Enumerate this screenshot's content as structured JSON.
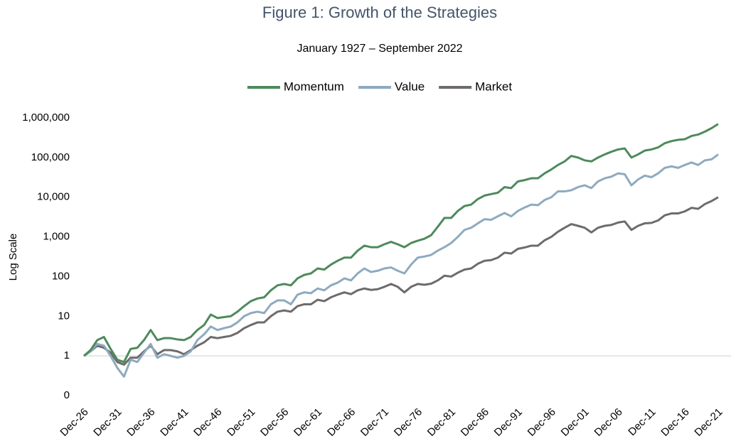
{
  "chart_data": {
    "type": "line",
    "title": "Figure 1: Growth of the Strategies",
    "subtitle": "January 1927 – September 2022",
    "y_label": "Log Scale",
    "log_scale": true,
    "hline": 1,
    "hline_color": "#d9d9d9",
    "legend_position": "top",
    "ylim": [
      0.1,
      1000000
    ],
    "yticks": [
      {
        "value": 0.1,
        "label": "0"
      },
      1,
      10,
      100,
      {
        "value": 1000,
        "label": "1,000"
      },
      {
        "value": 10000,
        "label": "10,000"
      },
      {
        "value": 100000,
        "label": "100,000"
      },
      {
        "value": 1000000,
        "label": "1,000,000"
      }
    ],
    "categories": [
      "Dec-26",
      null,
      null,
      null,
      null,
      "Dec-31",
      null,
      null,
      null,
      null,
      "Dec-36",
      null,
      null,
      null,
      null,
      "Dec-41",
      null,
      null,
      null,
      null,
      "Dec-46",
      null,
      null,
      null,
      null,
      "Dec-51",
      null,
      null,
      null,
      null,
      "Dec-56",
      null,
      null,
      null,
      null,
      "Dec-61",
      null,
      null,
      null,
      null,
      "Dec-66",
      null,
      null,
      null,
      null,
      "Dec-71",
      null,
      null,
      null,
      null,
      "Dec-76",
      null,
      null,
      null,
      null,
      "Dec-81",
      null,
      null,
      null,
      null,
      "Dec-86",
      null,
      null,
      null,
      null,
      "Dec-91",
      null,
      null,
      null,
      null,
      "Dec-96",
      null,
      null,
      null,
      null,
      "Dec-01",
      null,
      null,
      null,
      null,
      "Dec-06",
      null,
      null,
      null,
      null,
      "Dec-11",
      null,
      null,
      null,
      null,
      "Dec-16",
      null,
      null,
      null,
      null,
      "Dec-21"
    ],
    "series": [
      {
        "name": "Momentum",
        "color": "#4e8a5c",
        "values": [
          1,
          1.4,
          2.5,
          3,
          1.5,
          0.8,
          0.7,
          1.5,
          1.6,
          2.5,
          4.5,
          2.5,
          2.8,
          2.8,
          2.6,
          2.5,
          3,
          4.5,
          6,
          11,
          9,
          9.5,
          10,
          13,
          18,
          24,
          28,
          30,
          45,
          60,
          65,
          60,
          90,
          110,
          120,
          160,
          150,
          200,
          250,
          300,
          300,
          450,
          600,
          550,
          550,
          650,
          750,
          650,
          550,
          700,
          800,
          900,
          1100,
          1800,
          3000,
          3000,
          4500,
          6000,
          6500,
          9000,
          11000,
          12000,
          13000,
          18000,
          17000,
          25000,
          27000,
          30000,
          30000,
          40000,
          50000,
          65000,
          80000,
          110000,
          100000,
          85000,
          80000,
          100000,
          120000,
          140000,
          160000,
          170000,
          100000,
          120000,
          150000,
          160000,
          180000,
          230000,
          260000,
          280000,
          290000,
          350000,
          380000,
          450000,
          550000,
          700000
        ]
      },
      {
        "name": "Value",
        "color": "#8eaabf",
        "values": [
          1,
          1.3,
          2,
          1.8,
          1,
          0.5,
          0.3,
          0.8,
          0.7,
          1.2,
          2,
          0.9,
          1.1,
          1,
          0.9,
          1,
          1.3,
          2.5,
          3.5,
          5.5,
          4.5,
          5,
          5.5,
          7,
          10,
          12,
          13,
          12,
          20,
          25,
          25,
          20,
          35,
          40,
          38,
          50,
          45,
          60,
          70,
          90,
          80,
          120,
          160,
          130,
          140,
          160,
          170,
          140,
          120,
          200,
          300,
          320,
          350,
          450,
          550,
          700,
          1000,
          1500,
          1700,
          2200,
          2800,
          2700,
          3300,
          4000,
          3300,
          4500,
          5500,
          6500,
          6300,
          8500,
          10000,
          14000,
          14000,
          15000,
          18000,
          20000,
          17000,
          25000,
          30000,
          33000,
          40000,
          38000,
          20000,
          28000,
          35000,
          32000,
          40000,
          55000,
          60000,
          55000,
          65000,
          75000,
          65000,
          85000,
          90000,
          120000
        ]
      },
      {
        "name": "Market",
        "color": "#6f6a6b",
        "values": [
          1,
          1.3,
          1.8,
          1.6,
          1.2,
          0.7,
          0.6,
          0.9,
          0.9,
          1.3,
          1.8,
          1.1,
          1.4,
          1.4,
          1.3,
          1.1,
          1.4,
          1.8,
          2.2,
          3,
          2.8,
          3,
          3.2,
          3.8,
          5,
          6,
          7,
          7,
          10,
          13,
          14,
          13,
          18,
          20,
          20,
          26,
          24,
          30,
          35,
          40,
          36,
          45,
          50,
          46,
          48,
          55,
          65,
          55,
          40,
          55,
          65,
          62,
          66,
          80,
          105,
          100,
          125,
          150,
          160,
          210,
          250,
          260,
          300,
          400,
          380,
          500,
          540,
          600,
          600,
          820,
          1000,
          1350,
          1700,
          2100,
          1900,
          1700,
          1300,
          1700,
          1900,
          2000,
          2300,
          2450,
          1500,
          1900,
          2200,
          2250,
          2600,
          3500,
          3900,
          3900,
          4400,
          5400,
          5100,
          6700,
          8000,
          10000
        ]
      }
    ]
  }
}
